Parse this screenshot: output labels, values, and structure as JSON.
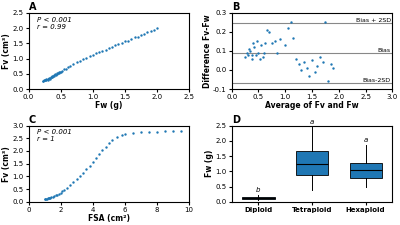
{
  "chart_data": [
    {
      "type": "scatter",
      "title": "A",
      "xlabel": "Fw (g)",
      "ylabel": "Fv (cm³)",
      "xlim": [
        0.0,
        2.5
      ],
      "ylim": [
        0.0,
        2.5
      ],
      "xticks": [
        0.0,
        0.5,
        1.0,
        1.5,
        2.0,
        2.5
      ],
      "yticks": [
        0.0,
        0.5,
        1.0,
        1.5,
        2.0,
        2.5
      ],
      "annotations": [
        "P < 0.001\nr = 0.99"
      ],
      "x": [
        0.22,
        0.23,
        0.24,
        0.25,
        0.26,
        0.27,
        0.28,
        0.3,
        0.32,
        0.33,
        0.35,
        0.36,
        0.38,
        0.4,
        0.42,
        0.44,
        0.46,
        0.48,
        0.5,
        0.52,
        0.55,
        0.58,
        0.62,
        0.65,
        0.7,
        0.75,
        0.8,
        0.85,
        0.9,
        0.95,
        1.0,
        1.05,
        1.1,
        1.15,
        1.2,
        1.25,
        1.3,
        1.35,
        1.4,
        1.45,
        1.5,
        1.55,
        1.6,
        1.65,
        1.7,
        1.75,
        1.8,
        1.85,
        1.9,
        1.95,
        2.0,
        0.3,
        0.31,
        0.33,
        0.36,
        0.37,
        0.4,
        0.43,
        0.45,
        0.47,
        0.49
      ],
      "values": [
        0.27,
        0.26,
        0.28,
        0.3,
        0.29,
        0.31,
        0.32,
        0.33,
        0.35,
        0.36,
        0.39,
        0.41,
        0.42,
        0.47,
        0.49,
        0.51,
        0.54,
        0.56,
        0.57,
        0.59,
        0.64,
        0.67,
        0.71,
        0.77,
        0.81,
        0.87,
        0.91,
        0.97,
        1.01,
        1.07,
        1.11,
        1.17,
        1.21,
        1.24,
        1.29,
        1.34,
        1.39,
        1.44,
        1.49,
        1.51,
        1.57,
        1.59,
        1.64,
        1.69,
        1.71,
        1.77,
        1.81,
        1.87,
        1.89,
        1.94,
        1.99,
        0.3,
        0.32,
        0.34,
        0.38,
        0.4,
        0.44,
        0.47,
        0.5,
        0.52,
        0.55
      ]
    },
    {
      "type": "scatter",
      "title": "B",
      "xlabel": "Average of Fv and Fw",
      "ylabel": "Difference Fv-Fw",
      "xlim": [
        0.0,
        3.0
      ],
      "ylim": [
        -0.1,
        0.3
      ],
      "xticks": [
        0.0,
        0.5,
        1.0,
        1.5,
        2.0,
        2.5,
        3.0
      ],
      "yticks": [
        -0.1,
        0.0,
        0.1,
        0.2,
        0.3
      ],
      "lines": [
        {
          "y": 0.09,
          "label": "Bias",
          "color": "#888888"
        },
        {
          "y": 0.245,
          "label": "Bias + 2SD",
          "color": "#888888"
        },
        {
          "y": -0.07,
          "label": "Bias-2SD",
          "color": "#888888"
        }
      ],
      "x": [
        0.25,
        0.28,
        0.3,
        0.32,
        0.35,
        0.37,
        0.38,
        0.4,
        0.42,
        0.45,
        0.47,
        0.5,
        0.52,
        0.55,
        0.58,
        0.6,
        0.62,
        0.65,
        0.7,
        0.75,
        0.8,
        0.85,
        0.9,
        1.0,
        1.05,
        1.1,
        1.15,
        1.2,
        1.25,
        1.3,
        1.35,
        1.4,
        1.45,
        1.5,
        1.55,
        1.6,
        1.65,
        1.7,
        1.75,
        1.8,
        1.85,
        1.9
      ],
      "values": [
        0.07,
        0.09,
        0.08,
        0.11,
        0.1,
        0.06,
        0.08,
        0.14,
        0.12,
        0.08,
        0.15,
        0.09,
        0.06,
        0.13,
        0.07,
        0.09,
        0.14,
        0.21,
        0.2,
        0.14,
        0.15,
        0.09,
        0.16,
        0.13,
        0.22,
        0.25,
        0.17,
        0.06,
        0.03,
        0.0,
        0.04,
        0.01,
        -0.03,
        0.05,
        -0.01,
        0.02,
        0.07,
        0.04,
        0.25,
        -0.06,
        0.03,
        0.01
      ]
    },
    {
      "type": "scatter",
      "title": "C",
      "xlabel": "FSA (cm²)",
      "ylabel": "Fv (cm³)",
      "xlim": [
        0,
        10
      ],
      "ylim": [
        0.0,
        3.0
      ],
      "xticks": [
        0,
        2,
        4,
        6,
        8,
        10
      ],
      "yticks": [
        0.0,
        0.5,
        1.0,
        1.5,
        2.0,
        2.5,
        3.0
      ],
      "annotations": [
        "P < 0.001\nr = 1"
      ],
      "x": [
        1.0,
        1.05,
        1.1,
        1.15,
        1.2,
        1.25,
        1.3,
        1.35,
        1.4,
        1.5,
        1.6,
        1.7,
        1.8,
        1.9,
        2.0,
        2.1,
        2.2,
        2.4,
        2.6,
        2.8,
        3.0,
        3.2,
        3.4,
        3.6,
        3.8,
        4.0,
        4.2,
        4.4,
        4.6,
        4.8,
        5.0,
        5.2,
        5.5,
        5.8,
        6.0,
        6.5,
        7.0,
        7.5,
        8.0,
        8.5,
        9.0,
        9.5
      ],
      "values": [
        0.1,
        0.11,
        0.12,
        0.12,
        0.13,
        0.14,
        0.15,
        0.16,
        0.17,
        0.19,
        0.22,
        0.25,
        0.28,
        0.32,
        0.36,
        0.41,
        0.46,
        0.55,
        0.65,
        0.76,
        0.88,
        1.0,
        1.14,
        1.28,
        1.42,
        1.57,
        1.72,
        1.87,
        2.02,
        2.17,
        2.3,
        2.42,
        2.55,
        2.63,
        2.68,
        2.72,
        2.74,
        2.75,
        2.76,
        2.77,
        2.78,
        2.79
      ]
    },
    {
      "type": "box",
      "title": "D",
      "ylabel": "Fw (g)",
      "ylim": [
        0.0,
        2.5
      ],
      "yticks": [
        0.0,
        0.5,
        1.0,
        1.5,
        2.0,
        2.5
      ],
      "categories": [
        "Diploid",
        "Tetraploid",
        "Hexaploid"
      ],
      "significance": [
        "b",
        "a",
        "a"
      ],
      "boxes": [
        {
          "q1": 0.1,
          "median": 0.13,
          "q3": 0.17,
          "whisker_low": 0.07,
          "whisker_high": 0.21
        },
        {
          "q1": 0.88,
          "median": 1.25,
          "q3": 1.65,
          "whisker_low": 0.38,
          "whisker_high": 2.45
        },
        {
          "q1": 0.78,
          "median": 1.05,
          "q3": 1.28,
          "whisker_low": 0.48,
          "whisker_high": 1.85
        }
      ]
    }
  ]
}
